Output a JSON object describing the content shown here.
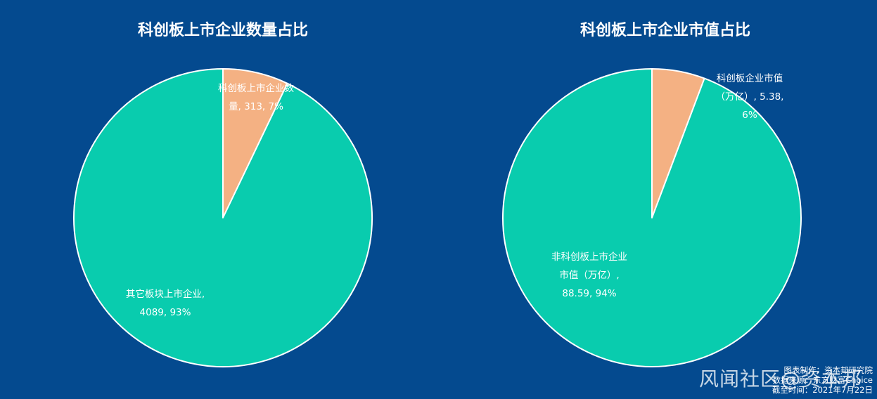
{
  "colors": {
    "background": "#044A8F",
    "teal": "#09CCAE",
    "peach": "#F4B183",
    "stroke": "#FFFFFF"
  },
  "chart_data": [
    {
      "type": "pie",
      "title": "科创板上市企业数量占比",
      "slices": [
        {
          "label": "科创板上市企业数量",
          "value": 313,
          "percent": "7%",
          "color": "#F4B183",
          "label_lines": [
            "科创板上市企业数",
            "量, 313, 7%"
          ]
        },
        {
          "label": "其它板块上市企业",
          "value": 4089,
          "percent": "93%",
          "color": "#09CCAE",
          "label_lines": [
            "其它板块上市企业,",
            "4089, 93%"
          ]
        }
      ]
    },
    {
      "type": "pie",
      "title": "科创板上市企业市值占比",
      "slices": [
        {
          "label": "科创板企业市值（万亿）",
          "value": 5.38,
          "percent": "6%",
          "color": "#F4B183",
          "label_lines": [
            "科创板企业市值",
            "（万亿）, 5.38,",
            "6%"
          ]
        },
        {
          "label": "非科创板上市企业市值（万亿）",
          "value": 88.59,
          "percent": "94%",
          "color": "#09CCAE",
          "label_lines": [
            "非科创板上市企业",
            "市值（万亿）,",
            "88.59, 94%"
          ]
        }
      ]
    }
  ],
  "footnote": [
    "图表制作：资本邦研究院",
    "数据来源：东方财富Choice",
    "截至时间：2021年7月22日"
  ],
  "watermark": "风闻社区@资本邦"
}
